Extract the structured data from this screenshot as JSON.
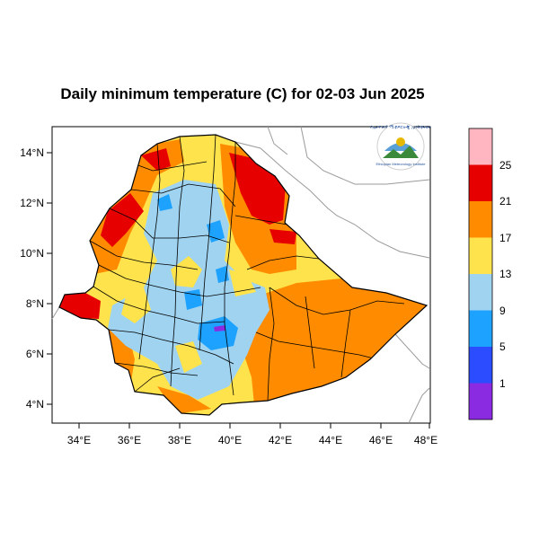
{
  "title": "Daily minimum temperature (C) for 02-03 Jun 2025",
  "x_ticks": [
    "34°E",
    "36°E",
    "38°E",
    "40°E",
    "42°E",
    "44°E",
    "46°E",
    "48°E"
  ],
  "y_ticks": [
    "14°N",
    "12°N",
    "10°N",
    "8°N",
    "6°N",
    "4°N"
  ],
  "colorbar": {
    "labels": [
      "25",
      "21",
      "17",
      "13",
      "9",
      "5",
      "1"
    ],
    "colors": [
      "#ffb6c1",
      "#e60000",
      "#ff8c00",
      "#ffe34d",
      "#9fd3f0",
      "#1ea2ff",
      "#2b4dff",
      "#8a2be2"
    ]
  },
  "logo": {
    "arc_text": "የኢትዮጵያ ሚቲዎሮሎጂ ኢንስቲትዩት",
    "name": "Ethiopian Meteorology Institute"
  }
}
